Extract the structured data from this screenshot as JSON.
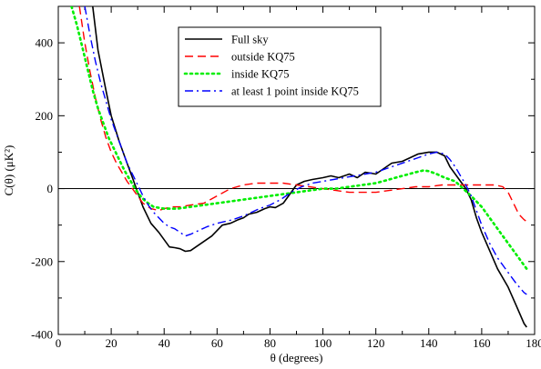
{
  "chart_data": {
    "type": "line",
    "xlabel": "θ (degrees)",
    "ylabel": "C(θ) (μK²)",
    "xlim": [
      0,
      180
    ],
    "ylim": [
      -400,
      500
    ],
    "x_ticks": [
      "0",
      "20",
      "40",
      "60",
      "80",
      "100",
      "120",
      "140",
      "160",
      "180"
    ],
    "y_ticks": [
      "-400",
      "-200",
      "0",
      "200",
      "400"
    ],
    "zero_line": true,
    "grid": false,
    "legend_position": "top-center",
    "series": [
      {
        "name": "Full sky",
        "color": "#000000",
        "dash": "solid",
        "x": [
          13,
          15,
          18,
          20,
          23,
          26,
          28,
          30,
          32,
          35,
          38,
          40,
          42,
          44,
          46,
          48,
          50,
          52,
          55,
          58,
          60,
          62,
          65,
          68,
          70,
          72,
          75,
          78,
          80,
          82,
          85,
          88,
          90,
          93,
          96,
          100,
          103,
          106,
          110,
          113,
          116,
          120,
          123,
          126,
          130,
          133,
          136,
          140,
          143,
          146,
          148,
          150,
          152,
          154,
          156,
          158,
          160,
          163,
          166,
          170,
          173,
          176,
          177
        ],
        "y": [
          500,
          380,
          270,
          200,
          130,
          70,
          30,
          -10,
          -50,
          -95,
          -120,
          -140,
          -160,
          -162,
          -165,
          -172,
          -170,
          -160,
          -145,
          -130,
          -115,
          -100,
          -95,
          -85,
          -80,
          -70,
          -65,
          -55,
          -50,
          -52,
          -40,
          -10,
          10,
          20,
          25,
          30,
          35,
          30,
          40,
          30,
          45,
          40,
          55,
          70,
          75,
          85,
          95,
          100,
          100,
          90,
          60,
          40,
          20,
          0,
          -30,
          -80,
          -120,
          -170,
          -220,
          -270,
          -320,
          -370,
          -380
        ]
      },
      {
        "name": "outside KQ75",
        "color": "#ff0000",
        "dash": "dashed",
        "x": [
          8,
          10,
          12,
          14,
          16,
          18,
          20,
          22,
          24,
          26,
          28,
          30,
          32,
          35,
          38,
          40,
          43,
          46,
          50,
          55,
          60,
          65,
          70,
          75,
          80,
          85,
          90,
          95,
          100,
          105,
          110,
          115,
          120,
          125,
          130,
          135,
          140,
          145,
          150,
          155,
          160,
          165,
          168,
          170,
          172,
          174,
          176,
          177
        ],
        "y": [
          500,
          400,
          320,
          250,
          190,
          140,
          100,
          70,
          45,
          20,
          0,
          -20,
          -40,
          -55,
          -60,
          -55,
          -50,
          -50,
          -45,
          -40,
          -20,
          0,
          10,
          15,
          15,
          15,
          10,
          5,
          0,
          -5,
          -10,
          -10,
          -10,
          -5,
          0,
          5,
          5,
          10,
          10,
          10,
          10,
          10,
          5,
          -10,
          -40,
          -70,
          -85,
          -90
        ]
      },
      {
        "name": "inside KQ75",
        "color": "#00ee00",
        "dash": "dotted",
        "x": [
          5,
          7,
          9,
          11,
          13,
          15,
          17,
          19,
          21,
          23,
          25,
          27,
          29,
          31,
          33,
          36,
          40,
          45,
          50,
          55,
          60,
          65,
          70,
          75,
          80,
          85,
          90,
          95,
          100,
          105,
          110,
          115,
          120,
          125,
          130,
          135,
          138,
          140,
          143,
          146,
          150,
          153,
          156,
          160,
          165,
          170,
          175,
          177
        ],
        "y": [
          500,
          450,
          390,
          330,
          270,
          220,
          180,
          140,
          110,
          80,
          50,
          25,
          0,
          -20,
          -35,
          -50,
          -55,
          -55,
          -50,
          -45,
          -40,
          -35,
          -30,
          -25,
          -20,
          -15,
          -10,
          -5,
          0,
          0,
          5,
          10,
          15,
          25,
          35,
          45,
          50,
          48,
          40,
          30,
          20,
          0,
          -20,
          -50,
          -100,
          -150,
          -200,
          -220
        ]
      },
      {
        "name": "at least 1 point inside KQ75",
        "color": "#0000ff",
        "dash": "dashdot",
        "x": [
          10,
          12,
          14,
          16,
          18,
          20,
          22,
          24,
          26,
          28,
          30,
          32,
          34,
          36,
          38,
          40,
          42,
          44,
          46,
          48,
          50,
          53,
          56,
          60,
          63,
          66,
          70,
          73,
          76,
          80,
          84,
          88,
          92,
          96,
          100,
          104,
          108,
          112,
          116,
          120,
          124,
          128,
          132,
          136,
          140,
          143,
          146,
          148,
          150,
          152,
          154,
          156,
          158,
          160,
          163,
          166,
          170,
          173,
          176,
          177
        ],
        "y": [
          500,
          420,
          350,
          290,
          240,
          190,
          150,
          110,
          70,
          40,
          10,
          -20,
          -45,
          -65,
          -80,
          -95,
          -105,
          -110,
          -120,
          -130,
          -125,
          -115,
          -105,
          -95,
          -90,
          -85,
          -75,
          -65,
          -55,
          -45,
          -30,
          -10,
          5,
          15,
          20,
          25,
          30,
          35,
          40,
          45,
          55,
          65,
          75,
          85,
          95,
          100,
          95,
          80,
          60,
          35,
          10,
          -20,
          -60,
          -100,
          -150,
          -190,
          -230,
          -260,
          -285,
          -290
        ]
      }
    ]
  }
}
